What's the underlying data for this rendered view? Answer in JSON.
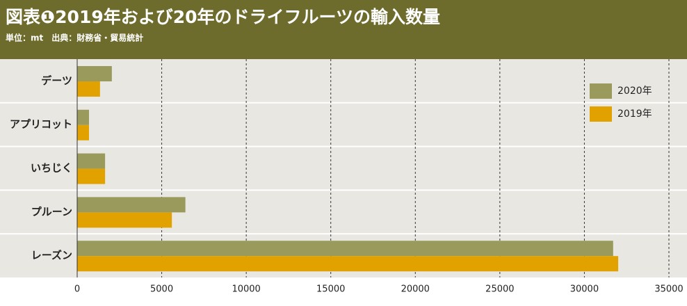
{
  "chart_data": {
    "type": "bar",
    "orientation": "horizontal",
    "title": "図表❶2019年および20年のドライフルーツの輸入数量",
    "subtitle": "単位：mt　出典：財務省・貿易統計",
    "categories": [
      "デーツ",
      "アプリコット",
      "いちじく",
      "プルーン",
      "レーズン"
    ],
    "series": [
      {
        "name": "2020年",
        "color": "#999a5c",
        "values": [
          2050,
          700,
          1650,
          6400,
          31700
        ]
      },
      {
        "name": "2019年",
        "color": "#e1a200",
        "values": [
          1350,
          700,
          1650,
          5600,
          32000
        ]
      }
    ],
    "xlim": [
      0,
      35000
    ],
    "xticks": [
      0,
      5000,
      10000,
      15000,
      20000,
      25000,
      30000,
      35000
    ],
    "grid": true,
    "legend": "upper right"
  }
}
